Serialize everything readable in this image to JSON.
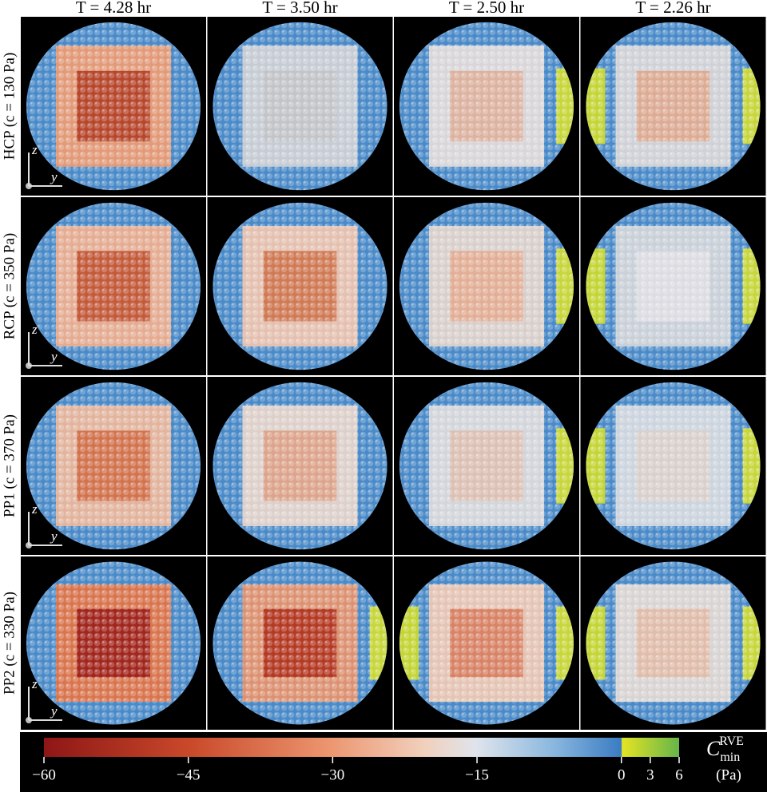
{
  "columns": [
    "T = 4.28 hr",
    "T = 3.50 hr",
    "T = 2.50 hr",
    "T = 2.26 hr"
  ],
  "rows": [
    "HCP (c = 130 Pa)",
    "RCP (c = 350 Pa)",
    "PP1 (c = 370 Pa)",
    "PP2 (c = 330 Pa)"
  ],
  "axis_labels": {
    "z": "z",
    "y": "y"
  },
  "colorbar": {
    "symbol": "C",
    "subscript": "min",
    "superscript": "RVE",
    "unit": "(Pa)",
    "range": [
      -60,
      6
    ],
    "ticks": [
      {
        "value": -60,
        "label": "−60"
      },
      {
        "value": -45,
        "label": "−45"
      },
      {
        "value": -30,
        "label": "−30"
      },
      {
        "value": -15,
        "label": "−15"
      },
      0,
      3,
      6
    ]
  }
}
